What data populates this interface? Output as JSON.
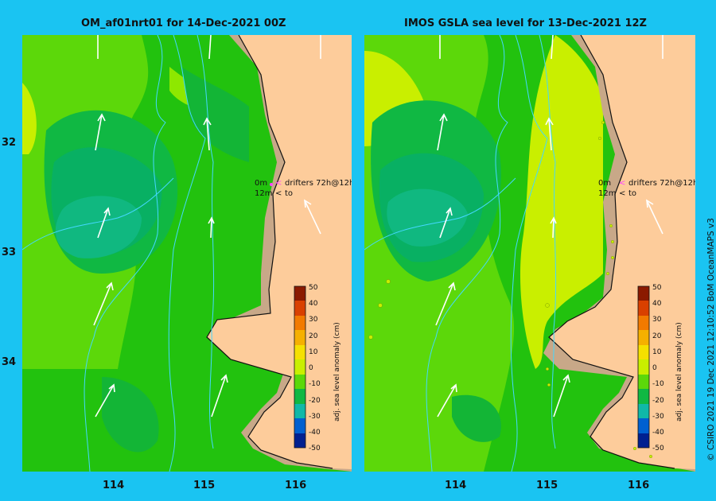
{
  "panels": [
    {
      "title": "OM_af01nrt01 for 14-Dec-2021 00Z"
    },
    {
      "title": "IMOS GSLA sea level  for 13-Dec-2021 12Z"
    }
  ],
  "axes": {
    "lat_ticks": [
      "32",
      "33",
      "34"
    ],
    "lon_ticks": [
      "114",
      "115",
      "116"
    ]
  },
  "legend": {
    "line1_depth": "0m",
    "line1_text": "drifters 72h@12h",
    "line2_depth": "12m",
    "line2_text": "to",
    "drifter_color": "#ff44ff"
  },
  "colorbar": {
    "label": "adj. sea level anomaly (cm)",
    "ticks": [
      "50",
      "40",
      "30",
      "20",
      "10",
      "0",
      "-10",
      "-20",
      "-30",
      "-40",
      "-50"
    ]
  },
  "credit": "© CSIRO 2021   19 Dec 2021 12:10:52 BoM OceanMAPS v3",
  "colors": {
    "background": "#1ac4f2",
    "land": "#fdcc9b",
    "shelf": "#c8a888",
    "ocean_green": "#22c20e",
    "depth_contour": "#44d8ff"
  }
}
